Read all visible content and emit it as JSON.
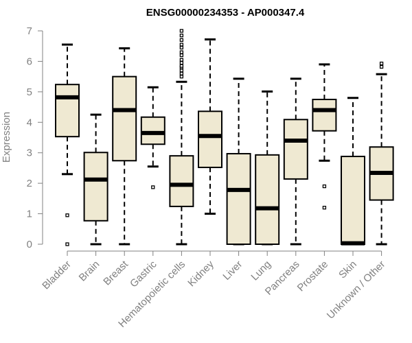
{
  "chart_data": {
    "type": "box",
    "title": "ENSG00000234353 - AP000347.4",
    "ylabel": "Expression",
    "xlabel": "",
    "ylim": [
      0,
      7
    ],
    "yticks": [
      0,
      1,
      2,
      3,
      4,
      5,
      6,
      7
    ],
    "grid": false,
    "box_fill": "#efe9d2",
    "categories": [
      "Bladder",
      "Brain",
      "Breast",
      "Gastric",
      "Hematopoietic cells",
      "Kidney",
      "Liver",
      "Lung",
      "Pancreas",
      "Prostate",
      "Skin",
      "Unknown / Other"
    ],
    "boxes": [
      {
        "whisker_low": 2.3,
        "q1": 3.53,
        "median": 4.82,
        "q3": 5.24,
        "whisker_high": 6.55,
        "outliers": [
          0,
          0.95
        ]
      },
      {
        "whisker_low": 0,
        "q1": 0.77,
        "median": 2.12,
        "q3": 3.01,
        "whisker_high": 4.25,
        "outliers": []
      },
      {
        "whisker_low": 0,
        "q1": 2.74,
        "median": 4.4,
        "q3": 5.5,
        "whisker_high": 6.43,
        "outliers": []
      },
      {
        "whisker_low": 2.55,
        "q1": 3.28,
        "median": 3.65,
        "q3": 4.17,
        "whisker_high": 5.15,
        "outliers": [
          1.87
        ]
      },
      {
        "whisker_low": 0,
        "q1": 1.24,
        "median": 1.95,
        "q3": 2.9,
        "whisker_high": 5.33,
        "outliers": [
          5.5,
          5.6,
          5.7,
          5.8,
          5.85,
          5.95,
          6.05,
          6.2,
          6.3,
          6.45,
          6.55,
          6.7,
          6.85,
          7.0
        ]
      },
      {
        "whisker_low": 1.0,
        "q1": 2.52,
        "median": 3.55,
        "q3": 4.36,
        "whisker_high": 6.72,
        "outliers": []
      },
      {
        "whisker_low": 0,
        "q1": 0,
        "median": 1.78,
        "q3": 2.97,
        "whisker_high": 5.43,
        "outliers": []
      },
      {
        "whisker_low": 0,
        "q1": 0,
        "median": 1.18,
        "q3": 2.93,
        "whisker_high": 5.01,
        "outliers": []
      },
      {
        "whisker_low": 0,
        "q1": 2.14,
        "median": 3.4,
        "q3": 4.09,
        "whisker_high": 5.43,
        "outliers": []
      },
      {
        "whisker_low": 2.74,
        "q1": 3.72,
        "median": 4.4,
        "q3": 4.75,
        "whisker_high": 5.9,
        "outliers": [
          1.2,
          1.9
        ]
      },
      {
        "whisker_low": 0,
        "q1": 0,
        "median": 0.03,
        "q3": 2.88,
        "whisker_high": 4.8,
        "outliers": []
      },
      {
        "whisker_low": 0,
        "q1": 1.45,
        "median": 2.34,
        "q3": 3.19,
        "whisker_high": 5.58,
        "outliers": [
          5.82,
          5.93
        ]
      }
    ]
  }
}
